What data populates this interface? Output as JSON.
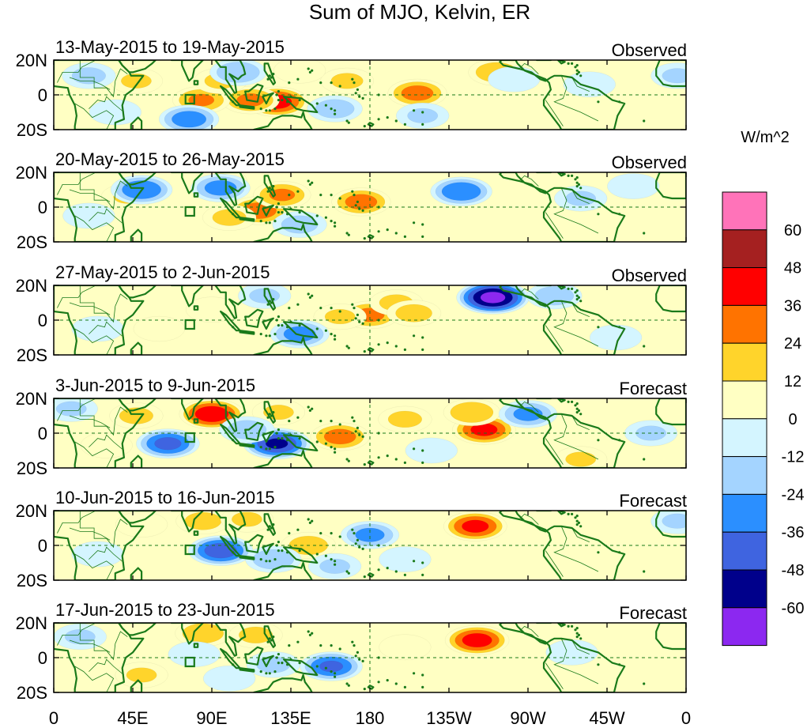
{
  "chart_data": {
    "type": "heatmap",
    "title": "Sum of MJO, Kelvin, ER",
    "units": "W/m^2",
    "lat_ticks": [
      "20N",
      "0",
      "20S"
    ],
    "lat_values": [
      20,
      0,
      -20
    ],
    "lon_ticks": [
      "0",
      "45E",
      "90E",
      "135E",
      "180",
      "135W",
      "90W",
      "45W",
      "0"
    ],
    "lon_values": [
      0,
      45,
      90,
      135,
      180,
      225,
      270,
      315,
      360
    ],
    "lon_range": [
      0,
      360
    ],
    "lat_range": [
      -20,
      20
    ],
    "colorbar": {
      "levels": [
        "60",
        "48",
        "36",
        "24",
        "12",
        "0",
        "-12",
        "-24",
        "-36",
        "-48",
        "-60"
      ],
      "colors": [
        "#ff73b9",
        "#a52020",
        "#ff0000",
        "#ff7300",
        "#ffd42b",
        "#ffffc3",
        "#d4f5ff",
        "#a4d4ff",
        "#2b8fff",
        "#3f64e0",
        "#00008b",
        "#8c28f0"
      ]
    },
    "panels": [
      {
        "date_range": "13-May-2015 to 19-May-2015",
        "status": "Observed",
        "anomalies": [
          {
            "lon": 127,
            "lat": -4,
            "value": 42
          },
          {
            "lon": 112,
            "lat": -3,
            "value": 27
          },
          {
            "lon": 84,
            "lat": -3,
            "value": 26
          },
          {
            "lon": 207,
            "lat": 1,
            "value": 30
          },
          {
            "lon": 95,
            "lat": 8,
            "value": 15
          },
          {
            "lon": 47,
            "lat": 8,
            "value": 14
          },
          {
            "lon": 252,
            "lat": 13,
            "value": 22
          },
          {
            "lon": 167,
            "lat": 8,
            "value": 15
          },
          {
            "lon": 77,
            "lat": -14,
            "value": -32
          },
          {
            "lon": 105,
            "lat": 13,
            "value": -24
          },
          {
            "lon": 160,
            "lat": -8,
            "value": -20
          },
          {
            "lon": 210,
            "lat": -12,
            "value": -14
          },
          {
            "lon": 20,
            "lat": 11,
            "value": -16
          },
          {
            "lon": 262,
            "lat": 9,
            "value": -12
          },
          {
            "lon": 305,
            "lat": 6,
            "value": -12
          },
          {
            "lon": 355,
            "lat": 11,
            "value": -14
          },
          {
            "lon": 35,
            "lat": -10,
            "value": -12
          },
          {
            "lon": 140,
            "lat": 14,
            "value": 12
          }
        ]
      },
      {
        "date_range": "20-May-2015 to 26-May-2015",
        "status": "Observed",
        "anomalies": [
          {
            "lon": 117,
            "lat": -2,
            "value": 32
          },
          {
            "lon": 130,
            "lat": 7,
            "value": 26
          },
          {
            "lon": 175,
            "lat": 3,
            "value": 30
          },
          {
            "lon": 100,
            "lat": -6,
            "value": 16
          },
          {
            "lon": 95,
            "lat": 15,
            "value": 14
          },
          {
            "lon": 42,
            "lat": 6,
            "value": 13
          },
          {
            "lon": 232,
            "lat": 9,
            "value": -36
          },
          {
            "lon": 50,
            "lat": 10,
            "value": -36
          },
          {
            "lon": 95,
            "lat": 11,
            "value": -30
          },
          {
            "lon": 140,
            "lat": -10,
            "value": -18
          },
          {
            "lon": 300,
            "lat": 5,
            "value": -14
          },
          {
            "lon": 20,
            "lat": -5,
            "value": -12
          },
          {
            "lon": 330,
            "lat": 12,
            "value": -12
          }
        ]
      },
      {
        "date_range": "27-May-2015 to 2-Jun-2015",
        "status": "Observed",
        "anomalies": [
          {
            "lon": 180,
            "lat": 3,
            "value": 28
          },
          {
            "lon": 163,
            "lat": 2,
            "value": 14
          },
          {
            "lon": 195,
            "lat": 10,
            "value": 16
          },
          {
            "lon": 205,
            "lat": 4,
            "value": 18
          },
          {
            "lon": 90,
            "lat": 6,
            "value": 12
          },
          {
            "lon": 60,
            "lat": -5,
            "value": 10
          },
          {
            "lon": 250,
            "lat": 13,
            "value": -64
          },
          {
            "lon": 140,
            "lat": -8,
            "value": -30
          },
          {
            "lon": 285,
            "lat": 14,
            "value": -20
          },
          {
            "lon": 120,
            "lat": 14,
            "value": -14
          },
          {
            "lon": 25,
            "lat": -5,
            "value": -12
          },
          {
            "lon": 320,
            "lat": -10,
            "value": -12
          }
        ]
      },
      {
        "date_range": "3-Jun-2015 to 9-Jun-2015",
        "status": "Forecast",
        "anomalies": [
          {
            "lon": 90,
            "lat": 11,
            "value": 45
          },
          {
            "lon": 163,
            "lat": -2,
            "value": 30
          },
          {
            "lon": 245,
            "lat": 2,
            "value": 40
          },
          {
            "lon": 238,
            "lat": 12,
            "value": 24
          },
          {
            "lon": 200,
            "lat": 8,
            "value": 16
          },
          {
            "lon": 47,
            "lat": 10,
            "value": 16
          },
          {
            "lon": 300,
            "lat": -15,
            "value": 14
          },
          {
            "lon": 128,
            "lat": 12,
            "value": 14
          },
          {
            "lon": 30,
            "lat": -7,
            "value": 12
          },
          {
            "lon": 127,
            "lat": -6,
            "value": -50
          },
          {
            "lon": 65,
            "lat": -6,
            "value": -40
          },
          {
            "lon": 270,
            "lat": 11,
            "value": -28
          },
          {
            "lon": 110,
            "lat": 2,
            "value": -20
          },
          {
            "lon": 340,
            "lat": 0,
            "value": -14
          },
          {
            "lon": 10,
            "lat": 14,
            "value": -14
          },
          {
            "lon": 215,
            "lat": -10,
            "value": -12
          }
        ]
      },
      {
        "date_range": "10-Jun-2015 to 16-Jun-2015",
        "status": "Forecast",
        "anomalies": [
          {
            "lon": 240,
            "lat": 11,
            "value": 40
          },
          {
            "lon": 145,
            "lat": 0,
            "value": 20
          },
          {
            "lon": 85,
            "lat": 14,
            "value": 18
          },
          {
            "lon": 110,
            "lat": 15,
            "value": 14
          },
          {
            "lon": 50,
            "lat": 12,
            "value": 12
          },
          {
            "lon": 95,
            "lat": -3,
            "value": -44
          },
          {
            "lon": 180,
            "lat": 6,
            "value": -28
          },
          {
            "lon": 125,
            "lat": -8,
            "value": -22
          },
          {
            "lon": 160,
            "lat": -12,
            "value": -14
          },
          {
            "lon": 200,
            "lat": -8,
            "value": -12
          },
          {
            "lon": 355,
            "lat": 14,
            "value": -14
          },
          {
            "lon": 25,
            "lat": -5,
            "value": -12
          }
        ]
      },
      {
        "date_range": "17-Jun-2015 to 23-Jun-2015",
        "status": "Forecast",
        "anomalies": [
          {
            "lon": 241,
            "lat": 10,
            "value": 42
          },
          {
            "lon": 85,
            "lat": 14,
            "value": 22
          },
          {
            "lon": 115,
            "lat": 13,
            "value": 16
          },
          {
            "lon": 50,
            "lat": -10,
            "value": 14
          },
          {
            "lon": 200,
            "lat": 6,
            "value": 12
          },
          {
            "lon": 158,
            "lat": -5,
            "value": -38
          },
          {
            "lon": 125,
            "lat": -4,
            "value": -16
          },
          {
            "lon": 15,
            "lat": 12,
            "value": -14
          },
          {
            "lon": 100,
            "lat": -12,
            "value": -12
          },
          {
            "lon": 295,
            "lat": 3,
            "value": -12
          },
          {
            "lon": 80,
            "lat": 2,
            "value": -12
          }
        ]
      }
    ]
  }
}
